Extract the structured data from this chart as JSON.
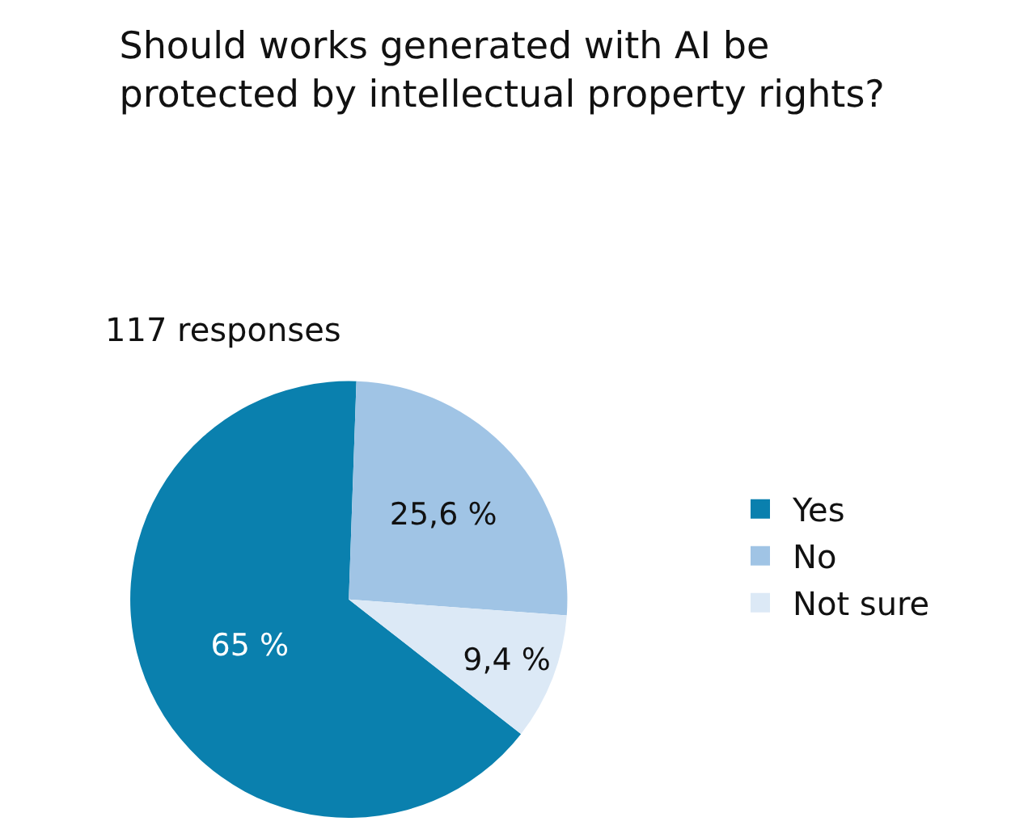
{
  "chart_data": {
    "type": "pie",
    "title": "Should works generated with AI be protected by intellectual property rights?",
    "subtitle": "117 responses",
    "categories": [
      "Yes",
      "No",
      "Not sure"
    ],
    "values": [
      65,
      25.6,
      9.4
    ],
    "value_labels": [
      "65 %",
      "25,6 %",
      "9,4 %"
    ],
    "colors": [
      "#0a80ae",
      "#a0c4e5",
      "#dce9f6"
    ],
    "legend": "right"
  }
}
